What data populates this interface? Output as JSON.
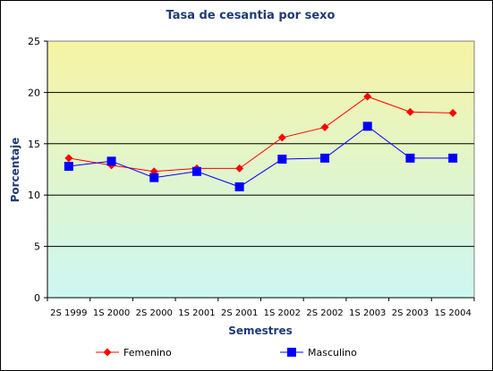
{
  "chart_data": {
    "type": "line",
    "title": "Tasa de cesantia por sexo",
    "xlabel": "Semestres",
    "ylabel": "Porcentaje",
    "ylim": [
      0,
      25
    ],
    "yticks": [
      0,
      5,
      10,
      15,
      20,
      25
    ],
    "categories": [
      "2S 1999",
      "1S 2000",
      "2S 2000",
      "1S 2001",
      "2S 2001",
      "1S 2002",
      "2S 2002",
      "1S 2003",
      "2S 2003",
      "1S 2004"
    ],
    "series": [
      {
        "name": "Femenino",
        "color": "#ff0000",
        "marker": "diamond",
        "values": [
          13.6,
          12.9,
          12.3,
          12.6,
          12.6,
          15.6,
          16.6,
          19.6,
          18.1,
          18.0
        ]
      },
      {
        "name": "Masculino",
        "color": "#0000ff",
        "marker": "square",
        "values": [
          12.8,
          13.3,
          11.7,
          12.3,
          10.8,
          13.5,
          13.6,
          16.7,
          13.6,
          13.6
        ]
      }
    ],
    "grid": true,
    "legend": "bottom",
    "background_gradient": [
      "#f6f4a4",
      "#cdf6f3"
    ]
  }
}
